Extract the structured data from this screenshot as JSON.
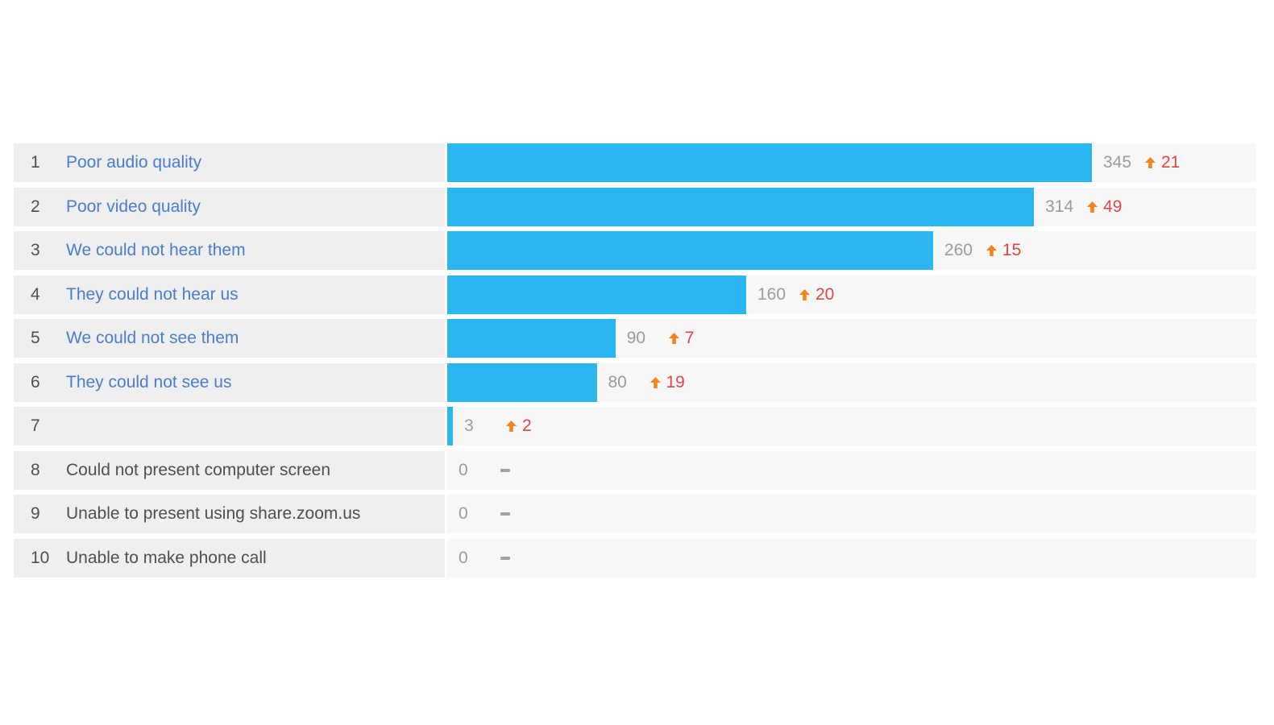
{
  "chart_data": {
    "type": "bar",
    "title": "",
    "orientation": "horizontal",
    "max_value": 345,
    "legend": null,
    "grid": false,
    "rows": [
      {
        "rank": "1",
        "label": "Poor audio quality",
        "label_is_link": true,
        "value": 345,
        "value_display": "345",
        "delta": "21",
        "trend": "up"
      },
      {
        "rank": "2",
        "label": "Poor video quality",
        "label_is_link": true,
        "value": 314,
        "value_display": "314",
        "delta": "49",
        "trend": "up"
      },
      {
        "rank": "3",
        "label": "We could not hear them",
        "label_is_link": true,
        "value": 260,
        "value_display": "260",
        "delta": "15",
        "trend": "up"
      },
      {
        "rank": "4",
        "label": "They could not hear us",
        "label_is_link": true,
        "value": 160,
        "value_display": "160",
        "delta": "20",
        "trend": "up"
      },
      {
        "rank": "5",
        "label": "We could not see them",
        "label_is_link": true,
        "value": 90,
        "value_display": "90",
        "delta": "7",
        "trend": "up"
      },
      {
        "rank": "6",
        "label": "They could not see us",
        "label_is_link": true,
        "value": 80,
        "value_display": "80",
        "delta": "19",
        "trend": "up"
      },
      {
        "rank": "7",
        "label": "",
        "label_is_link": false,
        "value": 3,
        "value_display": "3",
        "delta": "2",
        "trend": "up"
      },
      {
        "rank": "8",
        "label": "Could not present computer screen",
        "label_is_link": false,
        "value": 0,
        "value_display": "0",
        "delta": null,
        "trend": "none"
      },
      {
        "rank": "9",
        "label": "Unable to present using share.zoom.us",
        "label_is_link": false,
        "value": 0,
        "value_display": "0",
        "delta": null,
        "trend": "none"
      },
      {
        "rank": "10",
        "label": "Unable to make phone call",
        "label_is_link": false,
        "value": 0,
        "value_display": "0",
        "delta": null,
        "trend": "none"
      }
    ]
  },
  "icons": {
    "up_arrow": "up-arrow-icon",
    "no_change": "no-change-dash-icon"
  },
  "colors": {
    "bar": "#2ab6f1",
    "link": "#4a7dce",
    "row_label": "#4f4f4f",
    "value_text": "#9b9b9b",
    "delta_up": "#e04646",
    "arrow": "#f5831f",
    "dash": "#a3a3a3",
    "label_col_bg": "#efeff0",
    "track_bg": "#f7f7f8"
  }
}
